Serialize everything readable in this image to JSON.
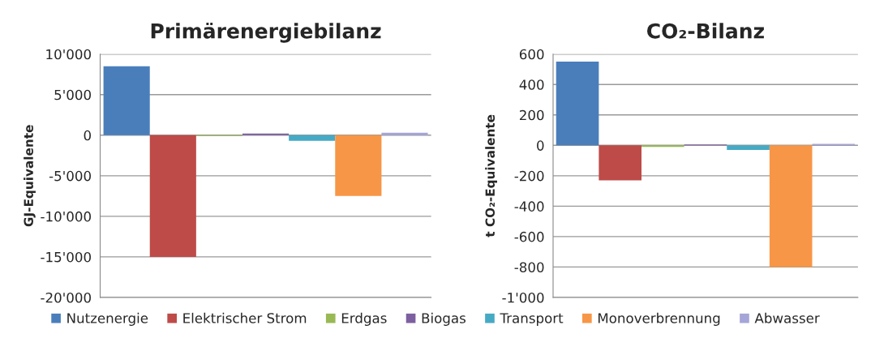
{
  "chart_data": [
    {
      "type": "bar",
      "title": "Primärenergiebilanz",
      "ylabel": "GJ-Equivalente",
      "categories": [
        null
      ],
      "series": [
        {
          "name": "Nutzenergie",
          "color": "#4a7ebb",
          "values": [
            8500
          ]
        },
        {
          "name": "Elektrischer Strom",
          "color": "#be4b48",
          "values": [
            -15000
          ]
        },
        {
          "name": "Erdgas",
          "color": "#98b954",
          "values": [
            -100
          ]
        },
        {
          "name": "Biogas",
          "color": "#7d60a0",
          "values": [
            200
          ]
        },
        {
          "name": "Transport",
          "color": "#46aac5",
          "values": [
            -700
          ]
        },
        {
          "name": "Monoverbrennung",
          "color": "#f79646",
          "values": [
            -7500
          ]
        },
        {
          "name": "Abwasser",
          "color": "#a5a5d8",
          "values": [
            300
          ]
        }
      ],
      "ylim": [
        -20000,
        10000
      ],
      "yticks": [
        {
          "value": -20000,
          "label": "-20'000"
        },
        {
          "value": -15000,
          "label": "-15'000"
        },
        {
          "value": -10000,
          "label": "-10'000"
        },
        {
          "value": -5000,
          "label": "-5'000"
        },
        0,
        {
          "value": 5000,
          "label": "5'000"
        },
        {
          "value": 10000,
          "label": "10'000"
        }
      ],
      "grid": "y",
      "legend": "bottom"
    },
    {
      "type": "bar",
      "title": "CO₂-Bilanz",
      "ylabel": "t CO₂-Equivalente",
      "categories": [
        null
      ],
      "series": [
        {
          "color": "#4a7ebb",
          "values": [
            550
          ]
        },
        {
          "color": "#be4b48",
          "values": [
            -230
          ]
        },
        {
          "color": "#98b954",
          "values": [
            -10
          ]
        },
        {
          "color": "#7d60a0",
          "values": [
            5
          ]
        },
        {
          "color": "#46aac5",
          "values": [
            -30
          ]
        },
        {
          "color": "#f79646",
          "values": [
            -800
          ]
        },
        {
          "color": "#a5a5d8",
          "values": [
            10
          ]
        }
      ],
      "ylim": [
        -1000,
        600
      ],
      "yticks": [
        {
          "value": -1000,
          "label": "-1'000"
        },
        -800,
        -600,
        -400,
        -200,
        0,
        200,
        400,
        600
      ],
      "grid": "y",
      "legend": false
    }
  ]
}
